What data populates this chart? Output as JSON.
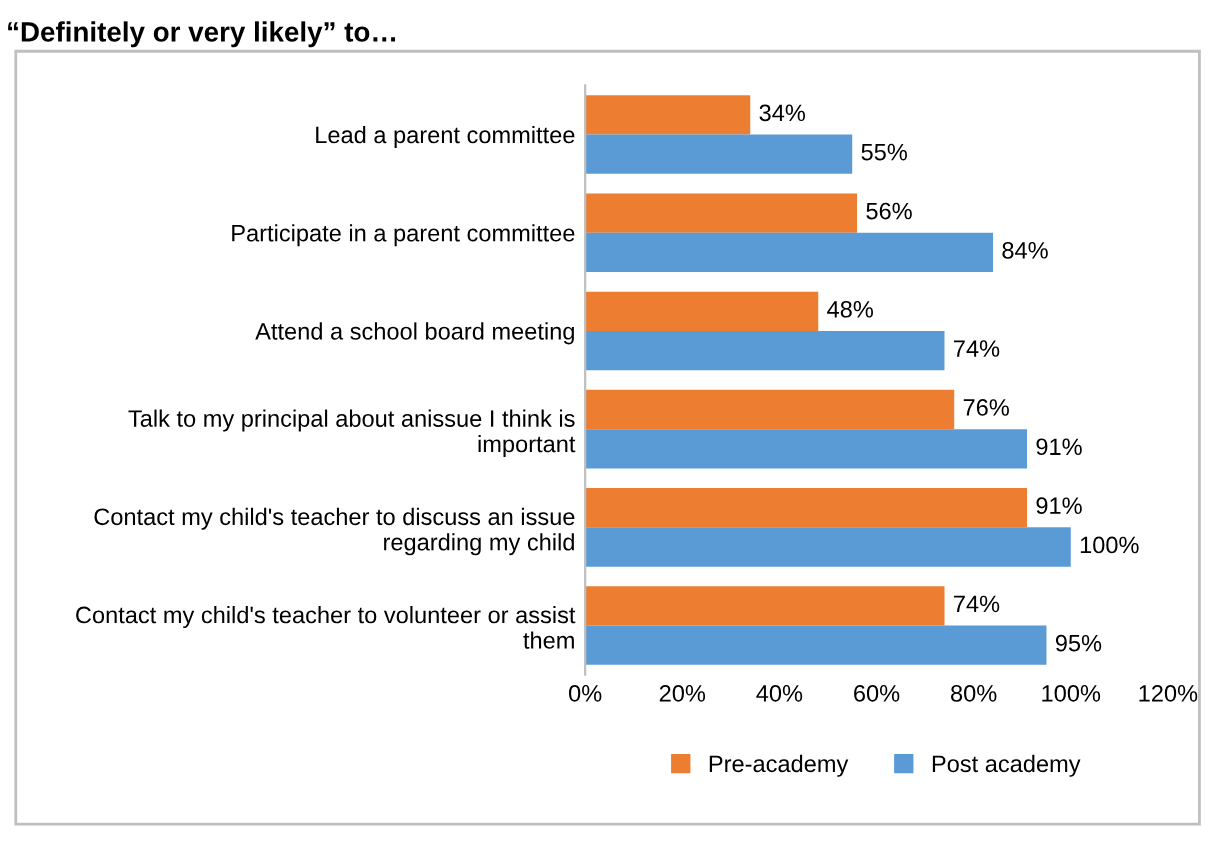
{
  "chart_data": {
    "type": "bar",
    "orientation": "horizontal",
    "title": "“Definitely or very likely” to…",
    "categories": [
      "Lead a parent committee",
      "Participate in a parent committee",
      "Attend a school board meeting",
      "Talk to my principal about anissue I think is\nimportant",
      "Contact my child's teacher to discuss an issue\nregarding my child",
      "Contact my child's teacher to volunteer or assist\nthem"
    ],
    "series": [
      {
        "name": "Pre-academy",
        "color": "#ed7d31",
        "values": [
          34,
          56,
          48,
          76,
          91,
          74
        ],
        "value_labels": [
          "34%",
          "56%",
          "48%",
          "76%",
          "91%",
          "74%"
        ]
      },
      {
        "name": "Post academy",
        "color": "#5b9bd5",
        "values": [
          55,
          84,
          74,
          91,
          100,
          95
        ],
        "value_labels": [
          "55%",
          "84%",
          "74%",
          "91%",
          "100%",
          "95%"
        ]
      }
    ],
    "xlim": [
      0,
      120
    ],
    "xticks": [
      {
        "value": 0,
        "label": "0%"
      },
      {
        "value": 20,
        "label": "20%"
      },
      {
        "value": 40,
        "label": "40%"
      },
      {
        "value": 60,
        "label": "60%"
      },
      {
        "value": 80,
        "label": "80%"
      },
      {
        "value": 100,
        "label": "100%"
      },
      {
        "value": 120,
        "label": "120%"
      }
    ],
    "grid": false,
    "legend": "bottom"
  }
}
